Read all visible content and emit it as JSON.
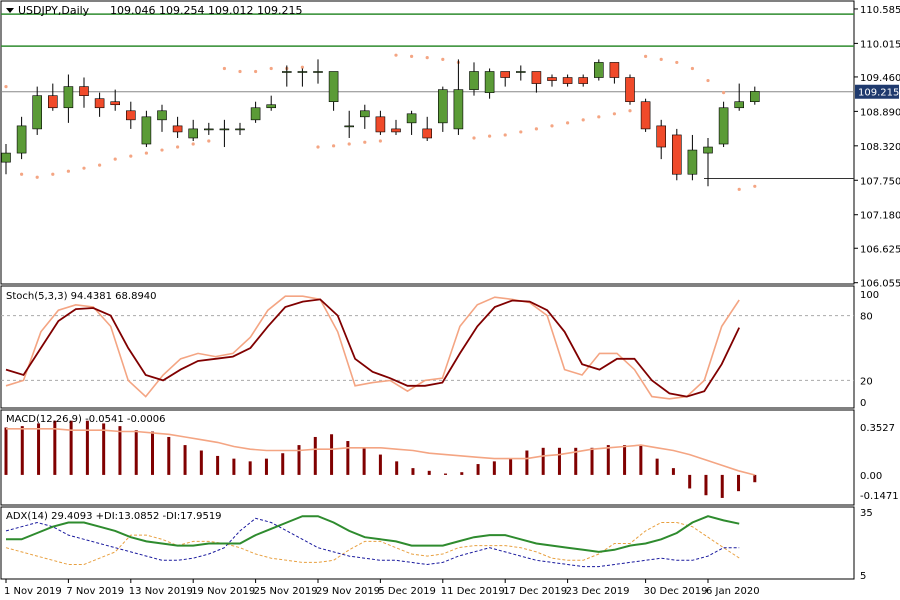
{
  "header": {
    "symbol": "USDJPY,Daily",
    "ohlc": "109.046 109.254 109.012 109.215"
  },
  "colors": {
    "bull": "#5b9b37",
    "bear": "#f04a2a",
    "sar": "#f4a583",
    "hline": "#2e8b2e",
    "stoch_main": "#f4a583",
    "stoch_signal": "#800000",
    "macd_hist": "#800000",
    "macd_signal": "#f4a583",
    "adx": "#2e8b2e",
    "plus_di": "#e8a040",
    "minus_di": "#1a1a9e",
    "price_tag_bg": "#1f3a6e"
  },
  "chart_data": [
    {
      "type": "candlestick",
      "title": "USDJPY,Daily",
      "ylim": [
        106.05,
        110.7
      ],
      "yticks": [
        "110.585",
        "110.015",
        "109.460",
        "108.890",
        "108.320",
        "107.750",
        "107.180",
        "106.625",
        "106.055"
      ],
      "last_price": "109.215",
      "x": [
        "1 Nov 2019",
        "4 Nov 2019",
        "5 Nov 2019",
        "6 Nov 2019",
        "7 Nov 2019",
        "8 Nov 2019",
        "11 Nov 2019",
        "12 Nov 2019",
        "13 Nov 2019",
        "14 Nov 2019",
        "15 Nov 2019",
        "18 Nov 2019",
        "19 Nov 2019",
        "20 Nov 2019",
        "21 Nov 2019",
        "22 Nov 2019",
        "25 Nov 2019",
        "26 Nov 2019",
        "27 Nov 2019",
        "28 Nov 2019",
        "29 Nov 2019",
        "2 Dec 2019",
        "3 Dec 2019",
        "4 Dec 2019",
        "5 Dec 2019",
        "6 Dec 2019",
        "9 Dec 2019",
        "10 Dec 2019",
        "11 Dec 2019",
        "12 Dec 2019",
        "13 Dec 2019",
        "16 Dec 2019",
        "17 Dec 2019",
        "18 Dec 2019",
        "19 Dec 2019",
        "20 Dec 2019",
        "23 Dec 2019",
        "24 Dec 2019",
        "25 Dec 2019",
        "26 Dec 2019",
        "27 Dec 2019",
        "30 Dec 2019",
        "31 Dec 2019",
        "2 Jan 2020",
        "3 Jan 2020",
        "6 Jan 2020",
        "7 Jan 2020",
        "8 Jan 2020",
        "9 Jan 2020"
      ],
      "open": [
        108.05,
        108.2,
        108.6,
        109.15,
        108.95,
        109.3,
        109.1,
        109.05,
        108.9,
        108.35,
        108.75,
        108.65,
        108.45,
        108.6,
        108.6,
        108.6,
        108.75,
        108.95,
        109.55,
        109.55,
        109.55,
        109.05,
        108.65,
        108.8,
        108.8,
        108.6,
        108.7,
        108.6,
        108.7,
        108.6,
        109.25,
        109.2,
        109.55,
        109.55,
        109.55,
        109.45,
        109.45,
        109.45,
        109.45,
        109.7,
        109.45,
        109.05,
        108.65,
        108.5,
        107.85,
        108.2,
        108.35,
        108.95,
        109.05
      ],
      "close": [
        108.2,
        108.65,
        109.15,
        108.95,
        109.3,
        109.15,
        108.95,
        109.0,
        108.75,
        108.8,
        108.9,
        108.55,
        108.6,
        108.6,
        108.6,
        108.6,
        108.95,
        109.0,
        109.55,
        109.55,
        109.55,
        109.55,
        108.65,
        108.9,
        108.55,
        108.55,
        108.85,
        108.45,
        109.25,
        109.25,
        109.55,
        109.55,
        109.45,
        109.55,
        109.35,
        109.4,
        109.35,
        109.35,
        109.7,
        109.45,
        109.05,
        108.6,
        108.3,
        107.85,
        108.25,
        108.3,
        108.95,
        109.05,
        109.22
      ],
      "high": [
        108.35,
        108.8,
        109.3,
        109.35,
        109.5,
        109.45,
        109.2,
        109.25,
        109.05,
        108.9,
        109.0,
        108.8,
        108.75,
        108.7,
        108.75,
        108.7,
        109.05,
        109.15,
        109.65,
        109.6,
        109.75,
        109.55,
        108.9,
        109.0,
        108.9,
        108.75,
        108.9,
        108.8,
        109.3,
        109.75,
        109.7,
        109.6,
        109.55,
        109.65,
        109.55,
        109.5,
        109.5,
        109.5,
        109.75,
        109.7,
        109.5,
        109.1,
        108.75,
        108.6,
        108.5,
        108.45,
        109.05,
        109.35,
        109.3
      ],
      "low": [
        107.85,
        108.1,
        108.5,
        108.9,
        108.7,
        108.95,
        108.8,
        108.9,
        108.6,
        108.3,
        108.55,
        108.45,
        108.4,
        108.5,
        108.3,
        108.5,
        108.7,
        108.9,
        109.3,
        109.3,
        109.35,
        108.9,
        108.45,
        108.6,
        108.5,
        108.5,
        108.5,
        108.4,
        108.55,
        108.5,
        109.15,
        109.1,
        109.3,
        109.4,
        109.2,
        109.3,
        109.3,
        109.3,
        109.4,
        109.35,
        109.0,
        108.55,
        108.1,
        107.75,
        107.75,
        107.65,
        108.3,
        108.9,
        109.0
      ],
      "sar": [
        109.3,
        107.85,
        107.8,
        107.85,
        107.9,
        107.95,
        108.0,
        108.1,
        108.15,
        108.2,
        108.25,
        108.3,
        108.35,
        108.4,
        109.6,
        109.55,
        109.55,
        109.6,
        109.6,
        109.62,
        108.3,
        108.32,
        108.35,
        108.38,
        108.4,
        109.82,
        109.8,
        109.78,
        109.75,
        109.7,
        108.45,
        108.48,
        108.5,
        108.55,
        108.6,
        108.65,
        108.7,
        108.75,
        108.8,
        108.85,
        108.9,
        109.8,
        109.75,
        109.7,
        109.6,
        109.4,
        109.2,
        107.6,
        107.65
      ],
      "horizontal_levels": [
        110.5,
        109.97,
        109.215,
        107.78
      ]
    },
    {
      "type": "line",
      "title": "Stoch(5,3,3) 94.4381 68.8940",
      "ylim": [
        0,
        100
      ],
      "yticks": [
        "100",
        "80",
        "20",
        "0"
      ],
      "series": [
        {
          "values": [
            15,
            20,
            65,
            85,
            90,
            88,
            70,
            20,
            5,
            25,
            40,
            45,
            42,
            45,
            60,
            85,
            98,
            98,
            95,
            65,
            15,
            18,
            20,
            10,
            20,
            22,
            70,
            90,
            97,
            95,
            92,
            80,
            30,
            25,
            45,
            45,
            30,
            5,
            3,
            5,
            20,
            70,
            94.44
          ]
        },
        {
          "values": [
            30,
            25,
            50,
            75,
            86,
            87,
            80,
            50,
            25,
            20,
            30,
            38,
            40,
            42,
            50,
            70,
            88,
            93,
            95,
            80,
            40,
            28,
            22,
            15,
            15,
            18,
            45,
            70,
            88,
            94,
            93,
            85,
            65,
            35,
            30,
            40,
            40,
            20,
            8,
            5,
            10,
            35,
            68.89
          ]
        }
      ]
    },
    {
      "type": "bar",
      "title": "MACD(12,26,9) -0.0541 -0.0006",
      "ylim": [
        -0.2,
        0.42
      ],
      "yticks": [
        "0.3527",
        "0.00",
        "-0.1471"
      ],
      "values": [
        0.35,
        0.36,
        0.38,
        0.4,
        0.4,
        0.4,
        0.38,
        0.36,
        0.33,
        0.32,
        0.28,
        0.22,
        0.18,
        0.14,
        0.12,
        0.1,
        0.12,
        0.16,
        0.22,
        0.28,
        0.3,
        0.25,
        0.2,
        0.15,
        0.1,
        0.05,
        0.03,
        0.01,
        0.02,
        0.08,
        0.1,
        0.12,
        0.18,
        0.2,
        0.2,
        0.2,
        0.2,
        0.22,
        0.22,
        0.22,
        0.12,
        0.05,
        -0.1,
        -0.15,
        -0.17,
        -0.12,
        -0.0541
      ],
      "signal": [
        0.34,
        0.34,
        0.34,
        0.34,
        0.33,
        0.33,
        0.33,
        0.32,
        0.32,
        0.31,
        0.3,
        0.28,
        0.26,
        0.24,
        0.21,
        0.19,
        0.18,
        0.18,
        0.18,
        0.19,
        0.19,
        0.2,
        0.2,
        0.2,
        0.19,
        0.18,
        0.16,
        0.15,
        0.14,
        0.13,
        0.12,
        0.12,
        0.12,
        0.14,
        0.15,
        0.17,
        0.19,
        0.2,
        0.21,
        0.22,
        0.2,
        0.18,
        0.15,
        0.11,
        0.07,
        0.03,
        -0.0006
      ]
    },
    {
      "type": "line",
      "title": "ADX(14) 29.4093 +DI:13.0852 -DI:17.9519",
      "ylim": [
        5,
        35
      ],
      "yticks": [
        "35",
        "5"
      ],
      "series": [
        {
          "values": [
            22,
            22,
            25,
            28,
            30,
            30,
            28,
            26,
            23,
            21,
            20,
            19,
            19,
            20,
            20,
            20,
            24,
            27,
            30,
            33,
            33,
            30,
            26,
            23,
            22,
            21,
            19,
            19,
            19,
            21,
            23,
            24,
            24,
            22,
            20,
            19,
            18,
            17,
            16,
            17,
            19,
            20,
            22,
            25,
            30,
            33,
            31,
            29.41
          ]
        },
        {
          "values": [
            18,
            16,
            14,
            12,
            10,
            10,
            13,
            16,
            24,
            24,
            22,
            19,
            21,
            21,
            20,
            18,
            15,
            13,
            12,
            11,
            11,
            12,
            17,
            21,
            21,
            18,
            15,
            14,
            15,
            18,
            19,
            19,
            19,
            18,
            16,
            13,
            12,
            12,
            15,
            20,
            20,
            26,
            30,
            30,
            28,
            23,
            18,
            13.09
          ]
        },
        {
          "values": [
            26,
            28,
            30,
            28,
            24,
            22,
            20,
            18,
            16,
            14,
            12,
            12,
            13,
            15,
            18,
            26,
            32,
            30,
            26,
            22,
            18,
            16,
            14,
            13,
            12,
            12,
            11,
            10,
            11,
            14,
            16,
            18,
            16,
            14,
            12,
            11,
            10,
            9,
            9,
            10,
            11,
            12,
            13,
            12,
            12,
            14,
            18,
            17.95
          ]
        }
      ]
    }
  ],
  "xaxis": {
    "labels": [
      "1 Nov 2019",
      "7 Nov 2019",
      "13 Nov 2019",
      "19 Nov 2019",
      "25 Nov 2019",
      "29 Nov 2019",
      "5 Dec 2019",
      "11 Dec 2019",
      "17 Dec 2019",
      "23 Dec 2019",
      "30 Dec 2019",
      "6 Jan 2020"
    ]
  }
}
